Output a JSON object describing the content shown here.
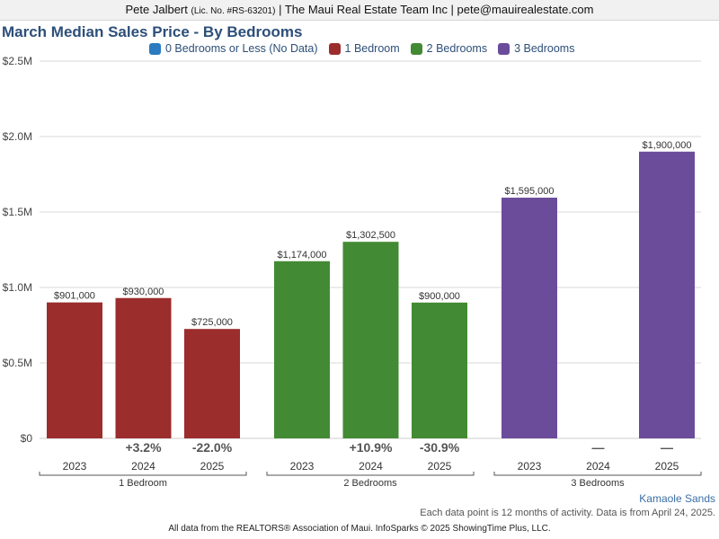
{
  "header": {
    "agent": "Pete Jalbert",
    "license": "(Lic. No. #RS-63201)",
    "company_email": "| The Maui Real Estate Team Inc | pete@mauirealestate.com"
  },
  "chart_data": {
    "type": "bar",
    "title": "March Median Sales Price - By Bedrooms",
    "ylim": [
      0,
      2500000
    ],
    "y_ticks": [
      {
        "value": 0,
        "label": "$0"
      },
      {
        "value": 500000,
        "label": "$0.5M"
      },
      {
        "value": 1000000,
        "label": "$1.0M"
      },
      {
        "value": 1500000,
        "label": "$1.5M"
      },
      {
        "value": 2000000,
        "label": "$2.0M"
      },
      {
        "value": 2500000,
        "label": "$2.5M"
      }
    ],
    "grid": true,
    "legend_position": "top",
    "series": [
      {
        "name": "0 Bedrooms or Less (No Data)",
        "color": "#2a7bbf"
      },
      {
        "name": "1 Bedroom",
        "color": "#9b2d2d"
      },
      {
        "name": "2 Bedrooms",
        "color": "#438a34"
      },
      {
        "name": "3 Bedrooms",
        "color": "#6b4c9a"
      }
    ],
    "groups": [
      {
        "name": "1 Bedroom",
        "color": "#9b2d2d",
        "years": [
          "2023",
          "2024",
          "2025"
        ],
        "values": [
          901000,
          930000,
          725000
        ],
        "value_labels": [
          "$901,000",
          "$930,000",
          "$725,000"
        ],
        "changes": [
          "",
          "+3.2%",
          "-22.0%"
        ]
      },
      {
        "name": "2 Bedrooms",
        "color": "#438a34",
        "years": [
          "2023",
          "2024",
          "2025"
        ],
        "values": [
          1174000,
          1302500,
          900000
        ],
        "value_labels": [
          "$1,174,000",
          "$1,302,500",
          "$900,000"
        ],
        "changes": [
          "",
          "+10.9%",
          "-30.9%"
        ]
      },
      {
        "name": "3 Bedrooms",
        "color": "#6b4c9a",
        "years": [
          "2023",
          "2024",
          "2025"
        ],
        "values": [
          1595000,
          null,
          1900000
        ],
        "value_labels": [
          "$1,595,000",
          "",
          "$1,900,000"
        ],
        "changes": [
          "",
          "—",
          "—"
        ]
      }
    ]
  },
  "footer": {
    "place": "Kamaole Sands",
    "note": "Each data point is 12 months of activity. Data is from April 24, 2025.",
    "source": "All data from the REALTORS® Association of Maui. InfoSparks © 2025 ShowingTime Plus, LLC."
  }
}
